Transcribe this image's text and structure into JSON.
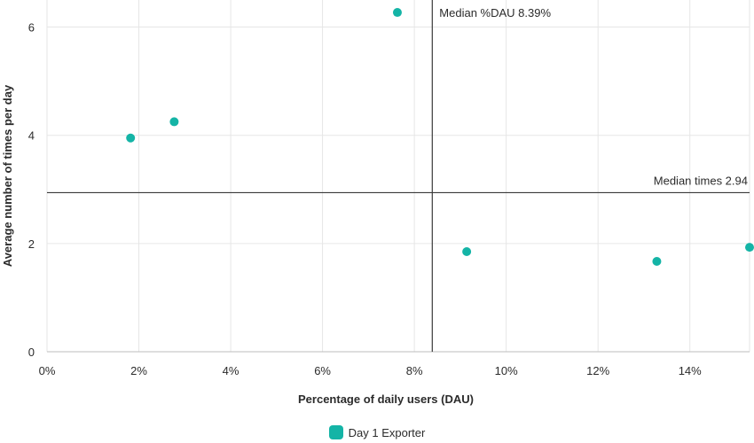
{
  "colors": {
    "series": "#14b4a6",
    "grid": "#e6e6e6",
    "median_line": "#3a3a3a",
    "axis_baseline": "#bdbdbd"
  },
  "chart_data": {
    "type": "scatter",
    "xlabel": "Percentage of daily users (DAU)",
    "ylabel": "Average number of times per day",
    "x_unit": "%",
    "xlim": [
      0,
      15.3
    ],
    "ylim": [
      0,
      6.5
    ],
    "x_ticks": [
      0,
      2,
      4,
      6,
      8,
      10,
      12,
      14
    ],
    "x_tick_labels": [
      "0%",
      "2%",
      "4%",
      "6%",
      "8%",
      "10%",
      "12%",
      "14%"
    ],
    "y_ticks": [
      0,
      2,
      4,
      6
    ],
    "y_tick_labels": [
      "0",
      "2",
      "4",
      "6"
    ],
    "grid": true,
    "legend_position": "bottom-center",
    "series": [
      {
        "name": "Day  1 Exporter",
        "points": [
          {
            "x": 1.82,
            "y": 3.95
          },
          {
            "x": 2.77,
            "y": 4.25
          },
          {
            "x": 7.63,
            "y": 6.27
          },
          {
            "x": 9.14,
            "y": 1.85
          },
          {
            "x": 13.28,
            "y": 1.67
          },
          {
            "x": 15.3,
            "y": 1.93
          }
        ]
      }
    ],
    "reference_lines": [
      {
        "orientation": "vertical",
        "value": 8.39,
        "label": "Median %DAU 8.39%"
      },
      {
        "orientation": "horizontal",
        "value": 2.94,
        "label": "Median times 2.94"
      }
    ]
  }
}
